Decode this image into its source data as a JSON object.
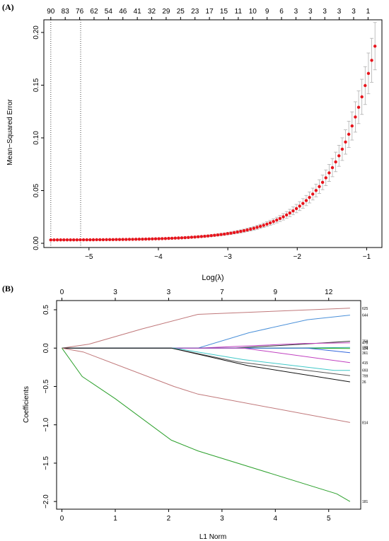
{
  "chart_data": [
    {
      "type": "scatter",
      "panel_label": "(A)",
      "xlabel": "Log(λ)",
      "ylabel": "Mean−Squared Error",
      "xlim": [
        -5.65,
        -0.78
      ],
      "ylim": [
        -0.004,
        0.212
      ],
      "x_ticks": [
        -5,
        -4,
        -3,
        -2,
        -1
      ],
      "x_tick_labels": [
        "−5",
        "−4",
        "−3",
        "−2",
        "−1"
      ],
      "y_ticks": [
        0.0,
        0.05,
        0.1,
        0.15,
        0.2
      ],
      "y_tick_labels": [
        "0.00",
        "0.05",
        "0.10",
        "0.15",
        "0.20"
      ],
      "top_axis_labels": [
        "90",
        "83",
        "76",
        "62",
        "54",
        "46",
        "41",
        "32",
        "29",
        "25",
        "23",
        "17",
        "15",
        "11",
        "10",
        "9",
        "6",
        "3",
        "3",
        "3",
        "3",
        "3",
        "1"
      ],
      "vlines": [
        -5.55,
        -5.12
      ],
      "point_color": "#e8141c",
      "errorbar_color": "#b0b0b0",
      "curve": {
        "n_points": 100,
        "x_start": -5.55,
        "x_end": -0.88,
        "y_min": 0.0032,
        "y_max": 0.187
      }
    },
    {
      "type": "line",
      "panel_label": "(B)",
      "xlabel": "L1 Norm",
      "ylabel": "Coefficients",
      "xlim": [
        -0.1,
        5.6
      ],
      "ylim": [
        -2.1,
        0.62
      ],
      "x_ticks": [
        0,
        1,
        2,
        3,
        4,
        5
      ],
      "x_tick_labels": [
        "0",
        "1",
        "2",
        "3",
        "4",
        "5"
      ],
      "y_ticks": [
        -2.0,
        -1.5,
        -1.0,
        -0.5,
        0.0,
        0.5
      ],
      "y_tick_labels": [
        "−2.0",
        "−1.5",
        "−1.0",
        "−0.5",
        "0.0",
        "0.5"
      ],
      "top_axis_labels": [
        "0",
        "3",
        "3",
        "7",
        "9",
        "12"
      ],
      "series": [
        {
          "name": "625",
          "color": "#c0787a",
          "points": [
            [
              0,
              0
            ],
            [
              0.5,
              0.05
            ],
            [
              1.5,
              0.25
            ],
            [
              2.55,
              0.44
            ],
            [
              5.4,
              0.52
            ]
          ]
        },
        {
          "name": "644",
          "color": "#4a90d9",
          "points": [
            [
              0,
              0
            ],
            [
              2.55,
              0
            ],
            [
              3.5,
              0.2
            ],
            [
              4.6,
              0.37
            ],
            [
              5.4,
              0.43
            ]
          ]
        },
        {
          "name": "758",
          "color": "#333333",
          "points": [
            [
              0,
              0
            ],
            [
              3.2,
              0
            ],
            [
              4.5,
              0.05
            ],
            [
              5.4,
              0.09
            ]
          ]
        },
        {
          "name": "478",
          "color": "#c040c0",
          "points": [
            [
              0,
              0
            ],
            [
              2.55,
              0
            ],
            [
              4.5,
              0.06
            ],
            [
              5.4,
              0.07
            ]
          ]
        },
        {
          "name": "188",
          "color": "#40b0b0",
          "points": [
            [
              0,
              0
            ],
            [
              4.2,
              0
            ],
            [
              5.4,
              0.01
            ]
          ]
        },
        {
          "name": "124",
          "color": "#22aa22",
          "points": [
            [
              0,
              0
            ],
            [
              4.5,
              0
            ],
            [
              5.4,
              -0.005
            ]
          ]
        },
        {
          "name": "361",
          "color": "#3366dd",
          "points": [
            [
              0,
              0
            ],
            [
              4.6,
              0
            ],
            [
              5.4,
              -0.06
            ]
          ]
        },
        {
          "name": "415",
          "color": "#c040c0",
          "points": [
            [
              0,
              0
            ],
            [
              3.4,
              0
            ],
            [
              5.4,
              -0.19
            ]
          ]
        },
        {
          "name": "693",
          "color": "#40c8c8",
          "points": [
            [
              0,
              0
            ],
            [
              2.1,
              0
            ],
            [
              3.4,
              -0.15
            ],
            [
              5.1,
              -0.29
            ],
            [
              5.4,
              -0.29
            ]
          ]
        },
        {
          "name": "799",
          "color": "#555555",
          "points": [
            [
              0,
              0
            ],
            [
              2.05,
              0
            ],
            [
              3.3,
              -0.18
            ],
            [
              5.4,
              -0.36
            ]
          ]
        },
        {
          "name": "26",
          "color": "#111111",
          "points": [
            [
              0,
              0
            ],
            [
              2.05,
              0
            ],
            [
              3.5,
              -0.23
            ],
            [
              5.4,
              -0.44
            ]
          ]
        },
        {
          "name": "814",
          "color": "#c0787a",
          "points": [
            [
              0,
              0
            ],
            [
              0.4,
              -0.05
            ],
            [
              2.1,
              -0.5
            ],
            [
              2.55,
              -0.6
            ],
            [
              5.4,
              -0.97
            ]
          ]
        },
        {
          "name": "181",
          "color": "#2ca02c",
          "points": [
            [
              0,
              0
            ],
            [
              0.38,
              -0.37
            ],
            [
              1,
              -0.66
            ],
            [
              2.05,
              -1.2
            ],
            [
              2.55,
              -1.34
            ],
            [
              5.15,
              -1.9
            ],
            [
              5.4,
              -2.0
            ]
          ]
        }
      ]
    }
  ]
}
